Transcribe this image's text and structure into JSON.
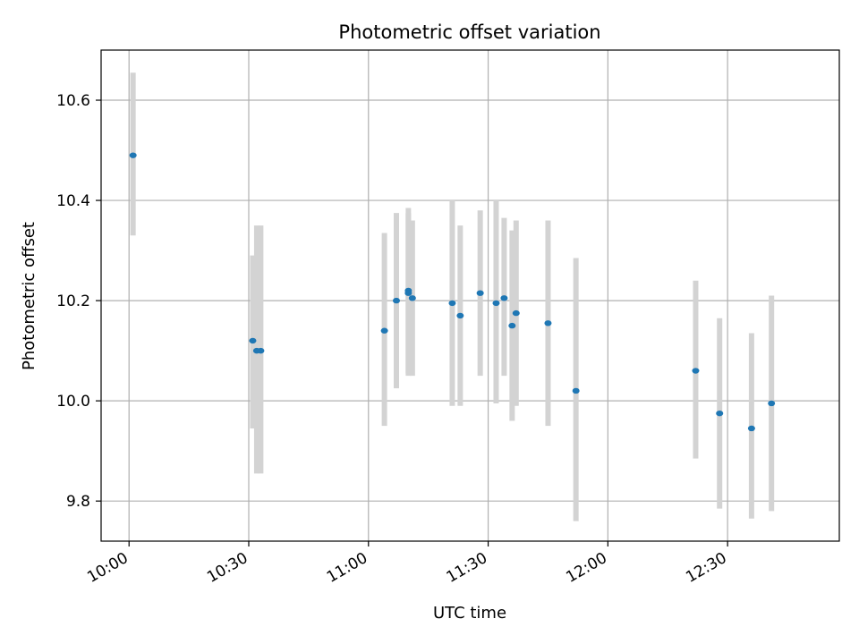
{
  "chart_data": {
    "type": "scatter",
    "title": "Photometric offset variation",
    "xlabel": "UTC time",
    "ylabel": "Photometric offset",
    "x_ticks": [
      "10:00",
      "10:30",
      "11:00",
      "11:30",
      "12:00",
      "12:30"
    ],
    "y_ticks": [
      "9.8",
      "10.0",
      "10.2",
      "10.4",
      "10.6"
    ],
    "xlim": [
      "09:53",
      "12:58"
    ],
    "ylim": [
      9.72,
      10.7
    ],
    "grid": true,
    "point_color": "#1f77b4",
    "errorbar_color": "#d3d3d3",
    "series": [
      {
        "points": [
          {
            "x": "10:01",
            "y": 10.49,
            "ylow": 10.33,
            "yhigh": 10.655
          },
          {
            "x": "10:31",
            "y": 10.12,
            "ylow": 9.945,
            "yhigh": 10.29
          },
          {
            "x": "10:32",
            "y": 10.1,
            "ylow": 9.855,
            "yhigh": 10.35
          },
          {
            "x": "10:33",
            "y": 10.1,
            "ylow": 9.855,
            "yhigh": 10.35
          },
          {
            "x": "11:04",
            "y": 10.14,
            "ylow": 9.95,
            "yhigh": 10.335
          },
          {
            "x": "11:07",
            "y": 10.2,
            "ylow": 10.025,
            "yhigh": 10.375
          },
          {
            "x": "11:10",
            "y": 10.22,
            "ylow": 10.05,
            "yhigh": 10.385
          },
          {
            "x": "11:10",
            "y": 10.215,
            "ylow": 10.055,
            "yhigh": 10.375
          },
          {
            "x": "11:11",
            "y": 10.205,
            "ylow": 10.05,
            "yhigh": 10.36
          },
          {
            "x": "11:21",
            "y": 10.195,
            "ylow": 9.99,
            "yhigh": 10.4
          },
          {
            "x": "11:23",
            "y": 10.17,
            "ylow": 9.99,
            "yhigh": 10.35
          },
          {
            "x": "11:28",
            "y": 10.215,
            "ylow": 10.05,
            "yhigh": 10.38
          },
          {
            "x": "11:32",
            "y": 10.195,
            "ylow": 9.995,
            "yhigh": 10.4
          },
          {
            "x": "11:34",
            "y": 10.205,
            "ylow": 10.05,
            "yhigh": 10.365
          },
          {
            "x": "11:36",
            "y": 10.15,
            "ylow": 9.96,
            "yhigh": 10.34
          },
          {
            "x": "11:37",
            "y": 10.175,
            "ylow": 9.99,
            "yhigh": 10.36
          },
          {
            "x": "11:45",
            "y": 10.155,
            "ylow": 9.95,
            "yhigh": 10.36
          },
          {
            "x": "11:52",
            "y": 10.02,
            "ylow": 9.76,
            "yhigh": 10.285
          },
          {
            "x": "12:22",
            "y": 10.06,
            "ylow": 9.885,
            "yhigh": 10.24
          },
          {
            "x": "12:28",
            "y": 9.975,
            "ylow": 9.785,
            "yhigh": 10.165
          },
          {
            "x": "12:36",
            "y": 9.945,
            "ylow": 9.765,
            "yhigh": 10.135
          },
          {
            "x": "12:41",
            "y": 9.995,
            "ylow": 9.78,
            "yhigh": 10.21
          }
        ]
      }
    ]
  }
}
